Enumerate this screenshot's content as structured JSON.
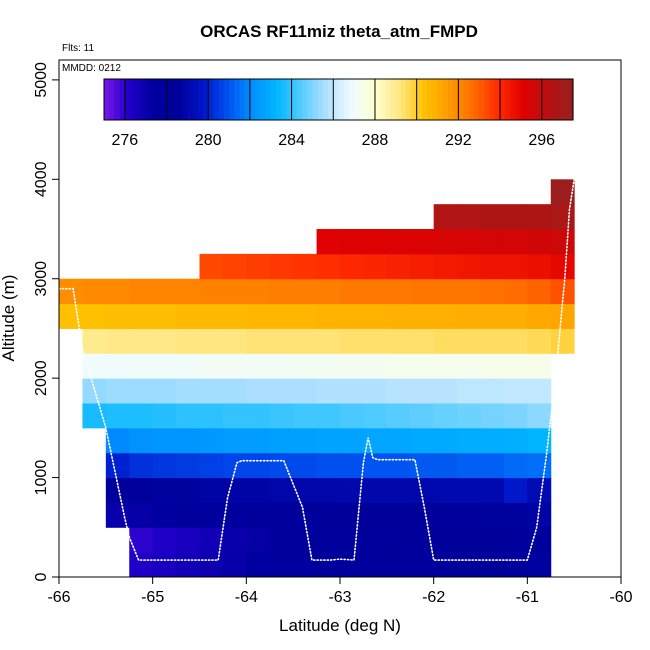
{
  "chart_data": {
    "type": "heatmap",
    "title": "ORCAS RF11miz theta_atm_FMPD",
    "flts_label": "Flts: 11",
    "mmdd_label": "MMDD: 0212",
    "xlabel": "Latitude (deg N)",
    "ylabel": "Altitude (m)",
    "xlim": [
      -66,
      -60
    ],
    "ylim": [
      0,
      5200
    ],
    "xticks": [
      -66,
      -65,
      -64,
      -63,
      -62,
      -61,
      -60
    ],
    "yticks": [
      0,
      1000,
      2000,
      3000,
      4000,
      5000
    ],
    "colorbar": {
      "range": [
        275.0,
        297.5
      ],
      "ticks": [
        276,
        280,
        284,
        288,
        292,
        296
      ],
      "colors": [
        "#7a18e8",
        "#1e00c8",
        "#0000a0",
        "#00009a",
        "#0014c8",
        "#0050f0",
        "#0090ff",
        "#00b6ff",
        "#55ccff",
        "#b0e0ff",
        "#eefbff",
        "#ffffd0",
        "#ffe680",
        "#ffc000",
        "#ff9a00",
        "#ff6a00",
        "#ff2a00",
        "#e00000",
        "#b81010",
        "#962020"
      ]
    },
    "grid": {
      "lat_start": -65.75,
      "lat_step": 0.25,
      "alt_step": 250
    },
    "rows": [
      {
        "alt": [
          0,
          250
        ],
        "lat": [
          -65.25,
          -60.75
        ],
        "theta": [
          276.2,
          276.4,
          276.7,
          276.9,
          277.1,
          277.4,
          277.6,
          277.8,
          278.0,
          278.1,
          278.2,
          278.3,
          278.2,
          278.3,
          278.4,
          278.5,
          278.6,
          278.7
        ]
      },
      {
        "alt": [
          250,
          500
        ],
        "lat": [
          -65.25,
          -60.75
        ],
        "theta": [
          276.0,
          276.2,
          276.4,
          276.7,
          277.0,
          277.2,
          277.5,
          277.7,
          277.9,
          278.1,
          278.1,
          278.2,
          278.3,
          278.3,
          278.4,
          278.5,
          278.6,
          278.6
        ]
      },
      {
        "alt": [
          500,
          750
        ],
        "lat": [
          -65.5,
          -60.75
        ],
        "theta": [
          277.0,
          277.2,
          277.4,
          277.5,
          277.7,
          277.8,
          278.0,
          278.1,
          278.3,
          278.3,
          278.4,
          278.4,
          278.5,
          278.5,
          278.6,
          278.6,
          278.7,
          278.7,
          278.8
        ]
      },
      {
        "alt": [
          750,
          1000
        ],
        "lat": [
          -65.5,
          -60.75
        ],
        "theta": [
          278.6,
          278.6,
          278.7,
          278.7,
          278.8,
          278.8,
          278.8,
          278.9,
          278.9,
          278.9,
          279.0,
          279.0,
          279.0,
          279.0,
          279.1,
          279.1,
          279.1,
          279.8,
          279.2
        ]
      },
      {
        "alt": [
          1000,
          1250
        ],
        "lat": [
          -65.5,
          -60.75
        ],
        "theta": [
          280.0,
          280.3,
          280.4,
          280.5,
          280.6,
          280.7,
          280.7,
          280.8,
          280.8,
          280.9,
          280.9,
          281.0,
          281.0,
          281.1,
          281.1,
          281.2,
          281.2,
          281.4,
          281.5
        ]
      },
      {
        "alt": [
          1250,
          1500
        ],
        "lat": [
          -65.5,
          -60.75
        ],
        "theta": [
          282.0,
          282.2,
          282.3,
          282.3,
          282.4,
          282.5,
          282.5,
          282.6,
          282.6,
          282.7,
          282.7,
          282.8,
          282.8,
          282.9,
          282.9,
          283.0,
          283.0,
          283.1,
          283.3
        ]
      },
      {
        "alt": [
          1500,
          1750
        ],
        "lat": [
          -65.75,
          -60.75
        ],
        "theta": [
          283.6,
          283.7,
          283.7,
          283.8,
          283.9,
          283.9,
          284.0,
          284.0,
          284.1,
          284.2,
          284.2,
          284.3,
          284.4,
          284.5,
          284.6,
          284.7,
          284.8,
          284.9,
          285.0,
          285.2
        ]
      },
      {
        "alt": [
          1750,
          2000
        ],
        "lat": [
          -65.75,
          -60.75
        ],
        "theta": [
          285.3,
          285.4,
          285.4,
          285.4,
          285.5,
          285.5,
          285.5,
          285.6,
          285.6,
          285.6,
          285.7,
          285.7,
          285.7,
          285.8,
          285.8,
          285.8,
          285.9,
          285.9,
          286.0,
          286.0
        ]
      },
      {
        "alt": [
          2000,
          2250
        ],
        "lat": [
          -65.75,
          -60.75
        ],
        "theta": [
          286.9,
          286.9,
          287.0,
          287.0,
          287.0,
          287.1,
          287.1,
          287.1,
          287.1,
          287.2,
          287.2,
          287.2,
          287.2,
          287.3,
          287.3,
          287.3,
          287.3,
          287.4,
          287.4,
          287.4
        ]
      },
      {
        "alt": [
          2250,
          2500
        ],
        "lat": [
          -65.75,
          -60.5
        ],
        "theta": [
          289.0,
          289.1,
          289.1,
          289.1,
          289.2,
          289.2,
          289.2,
          289.3,
          289.3,
          289.3,
          289.3,
          289.4,
          289.4,
          289.4,
          289.4,
          289.5,
          289.5,
          289.5,
          289.5,
          289.6,
          289.8
        ]
      },
      {
        "alt": [
          2500,
          2750
        ],
        "lat": [
          -66.0,
          -60.5
        ],
        "theta": [
          290.4,
          290.4,
          290.5,
          290.5,
          290.5,
          290.6,
          290.6,
          290.6,
          290.7,
          290.7,
          290.7,
          290.8,
          290.8,
          290.8,
          290.9,
          290.9,
          290.9,
          291.0,
          291.0,
          291.0,
          291.1,
          291.2
        ]
      },
      {
        "alt": [
          2750,
          3000
        ],
        "lat": [
          -66.0,
          -60.5
        ],
        "theta": [
          291.9,
          292.0,
          292.0,
          292.1,
          292.1,
          292.1,
          292.2,
          292.2,
          292.2,
          292.3,
          292.3,
          292.3,
          292.4,
          292.4,
          292.4,
          292.5,
          292.5,
          292.5,
          292.6,
          292.7,
          292.9,
          293.2
        ]
      },
      {
        "alt": [
          3000,
          3250
        ],
        "lat": [
          -64.5,
          -60.5
        ],
        "theta": [
          293.4,
          293.5,
          293.6,
          293.7,
          293.8,
          293.9,
          294.0,
          294.1,
          294.2,
          294.3,
          294.4,
          294.5,
          294.6,
          294.6,
          294.7,
          294.9
        ]
      },
      {
        "alt": [
          3250,
          3500
        ],
        "lat": [
          -63.25,
          -60.5
        ],
        "theta": [
          295.1,
          295.2,
          295.2,
          295.3,
          295.3,
          295.4,
          295.4,
          295.5,
          295.5,
          295.6,
          295.7
        ]
      },
      {
        "alt": [
          3500,
          3750
        ],
        "lat": [
          -62.0,
          -60.5
        ],
        "theta": [
          296.6,
          296.6,
          296.7,
          296.7,
          296.7,
          296.8
        ]
      },
      {
        "alt": [
          3750,
          4000
        ],
        "lat": [
          -60.75,
          -60.5
        ],
        "theta": [
          297.3
        ]
      }
    ],
    "flight_track": {
      "lat": [
        -66.0,
        -65.85,
        -65.75,
        -65.5,
        -65.3,
        -65.25,
        -65.15,
        -64.9,
        -64.6,
        -64.3,
        -64.2,
        -64.1,
        -64.05,
        -63.8,
        -63.6,
        -63.4,
        -63.3,
        -63.1,
        -63.0,
        -62.85,
        -62.75,
        -62.7,
        -62.65,
        -62.6,
        -62.5,
        -62.2,
        -62.1,
        -62.0,
        -61.9,
        -61.6,
        -61.3,
        -61.0,
        -60.9,
        -60.8,
        -60.7,
        -60.6,
        -60.55,
        -60.5
      ],
      "alt": [
        2900,
        2900,
        2300,
        1500,
        600,
        400,
        170,
        170,
        170,
        170,
        800,
        1150,
        1170,
        1170,
        1170,
        700,
        170,
        170,
        180,
        170,
        1150,
        1400,
        1200,
        1180,
        1180,
        1180,
        700,
        170,
        170,
        170,
        170,
        170,
        500,
        1200,
        2000,
        3000,
        3700,
        4000
      ]
    }
  }
}
